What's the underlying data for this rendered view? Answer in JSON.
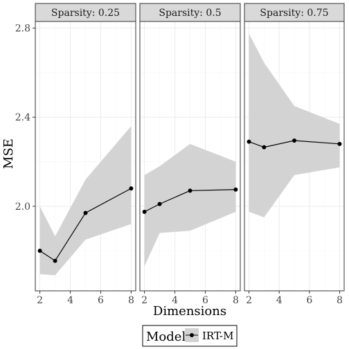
{
  "chart_data": {
    "type": "line",
    "xlabel": "Dimensions",
    "ylabel": "MSE",
    "xlim": [
      1.7,
      8.3
    ],
    "ylim": [
      1.62,
      2.83
    ],
    "x_ticks": [
      2,
      4,
      6,
      8
    ],
    "x_tick_labels": [
      "2",
      "4",
      "6",
      "8"
    ],
    "y_ticks": [
      2.0,
      2.4,
      2.8
    ],
    "y_tick_labels": [
      "2.0",
      "2.4",
      "2.8"
    ],
    "grid": true,
    "legend": {
      "title": "Model",
      "entries": [
        "IRT-M"
      ],
      "position": "bottom"
    },
    "panels": [
      {
        "label": "Sparsity: 0.25",
        "series": [
          {
            "name": "IRT-M",
            "x": [
              2,
              3,
              5,
              8
            ],
            "y": [
              1.8,
              1.755,
              1.97,
              2.08
            ],
            "lower": [
              1.695,
              1.69,
              1.85,
              1.92
            ],
            "upper": [
              2.0,
              1.865,
              2.12,
              2.36
            ]
          }
        ]
      },
      {
        "label": "Sparsity: 0.5",
        "series": [
          {
            "name": "IRT-M",
            "x": [
              2,
              3,
              5,
              8
            ],
            "y": [
              1.975,
              2.01,
              2.07,
              2.075
            ],
            "lower": [
              1.73,
              1.88,
              1.89,
              1.975
            ],
            "upper": [
              2.14,
              2.18,
              2.28,
              2.2
            ]
          }
        ]
      },
      {
        "label": "Sparsity: 0.75",
        "series": [
          {
            "name": "IRT-M",
            "x": [
              2,
              3,
              5,
              8
            ],
            "y": [
              2.29,
              2.265,
              2.295,
              2.28
            ],
            "lower": [
              1.975,
              1.95,
              2.14,
              2.175
            ],
            "upper": [
              2.775,
              2.645,
              2.45,
              2.37
            ]
          }
        ]
      }
    ],
    "colors": {
      "line": "#000000",
      "point": "#000000",
      "ribbon": "#d3d3d3",
      "strip_fill": "#d9d9d9",
      "panel_border": "#333333",
      "grid_major": "#ebebeb",
      "grid_minor": "#f5f5f5"
    }
  }
}
